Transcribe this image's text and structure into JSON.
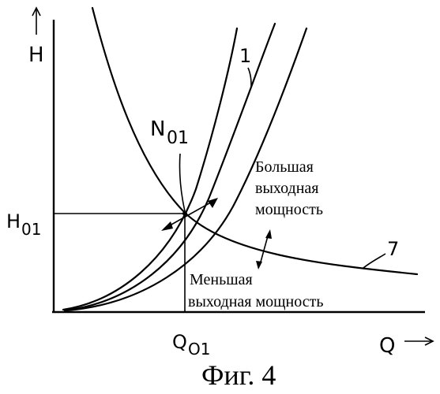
{
  "axes": {
    "y_label": "H",
    "x_label": "Q"
  },
  "labels": {
    "curve_1": "1",
    "curve_7": "7",
    "point": "N",
    "point_sub": "01",
    "h_label": "H",
    "h_sub": "01",
    "q_label": "Q",
    "q_sub": "O1",
    "higher_power_line1": "Большая",
    "higher_power_line2": "выходная",
    "higher_power_line3": "мощность",
    "lower_power_line1": "Меньшая",
    "lower_power_line2": "выходная мощность"
  },
  "caption": "Фиг. 4"
}
